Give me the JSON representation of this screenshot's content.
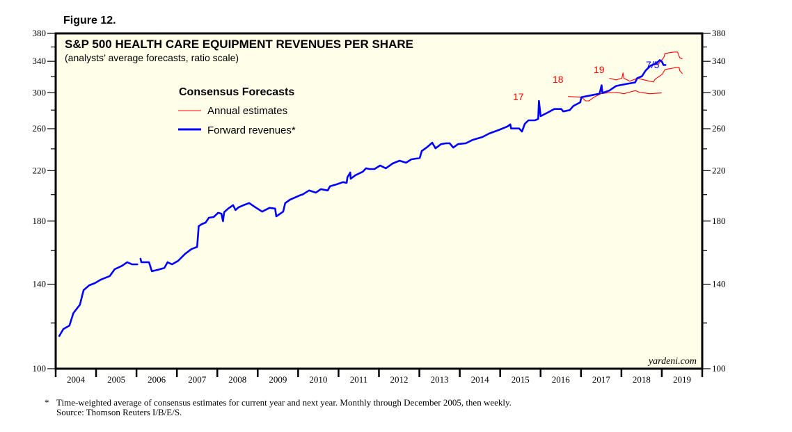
{
  "figure_label": "Figure 12.",
  "footnote": {
    "marker": "*",
    "line1": "Time-weighted average of consensus estimates for current year and next year. Monthly through December 2005, then weekly.",
    "line2": "Source: Thomson Reuters I/B/E/S."
  },
  "colors": {
    "background": "#fffee8",
    "forward": "#0000ff",
    "annual": "#ff0000",
    "frame": "#000000"
  },
  "chart_data": {
    "type": "line",
    "title": "S&P 500 HEALTH CARE EQUIPMENT REVENUES PER SHARE",
    "subtitle": "(analysts’ average forecasts, ratio scale)",
    "credit": "yardeni.com",
    "yscale": "log",
    "ylim": [
      100,
      380
    ],
    "xlim": [
      2004,
      2020
    ],
    "y_ticks": [
      100,
      140,
      180,
      220,
      260,
      300,
      340,
      380
    ],
    "y_minor_ticks": [
      120,
      160,
      200,
      240,
      280,
      320,
      360
    ],
    "x_ticks": [
      "2004",
      "2005",
      "2006",
      "2007",
      "2008",
      "2009",
      "2010",
      "2011",
      "2012",
      "2013",
      "2014",
      "2015",
      "2016",
      "2017",
      "2018",
      "2019"
    ],
    "legend": {
      "title": "Consensus Forecasts",
      "placement": "upper-left",
      "entries": [
        {
          "label": "Annual estimates",
          "series": "annual"
        },
        {
          "label": "Forward revenues*",
          "series": "forward"
        }
      ]
    },
    "annotations": [
      {
        "text": "17",
        "series": "annual_2017"
      },
      {
        "text": "18",
        "series": "annual_2018"
      },
      {
        "text": "19",
        "series": "annual_2019"
      },
      {
        "text": "7/5",
        "series": "forward"
      }
    ],
    "series": [
      {
        "name": "Forward revenues*",
        "key": "forward",
        "segments": [
          [
            [
              2004.09,
              113.9
            ],
            [
              2004.19,
              117.1
            ],
            [
              2004.34,
              118.7
            ],
            [
              2004.44,
              124.8
            ],
            [
              2004.6,
              129.0
            ],
            [
              2004.69,
              136.7
            ],
            [
              2004.83,
              139.4
            ],
            [
              2004.97,
              140.6
            ],
            [
              2005.12,
              142.6
            ],
            [
              2005.34,
              144.6
            ],
            [
              2005.46,
              148.6
            ],
            [
              2005.64,
              150.6
            ],
            [
              2005.77,
              152.8
            ],
            [
              2005.89,
              151.5
            ],
            [
              2006.0,
              151.5
            ],
            [
              2006.02,
              151.5
            ]
          ],
          [
            [
              2006.1,
              154.9
            ],
            [
              2006.12,
              152.8
            ],
            [
              2006.31,
              152.8
            ],
            [
              2006.38,
              147.4
            ],
            [
              2006.52,
              148.2
            ],
            [
              2006.69,
              149.4
            ],
            [
              2006.77,
              152.8
            ],
            [
              2006.88,
              151.5
            ],
            [
              2007.03,
              153.6
            ],
            [
              2007.2,
              157.9
            ],
            [
              2007.36,
              161.0
            ],
            [
              2007.5,
              162.4
            ],
            [
              2007.52,
              169.2
            ],
            [
              2007.54,
              176.4
            ],
            [
              2007.62,
              177.9
            ],
            [
              2007.71,
              178.9
            ],
            [
              2007.79,
              182.4
            ],
            [
              2007.91,
              182.9
            ],
            [
              2008.02,
              186.0
            ],
            [
              2008.1,
              185.4
            ],
            [
              2008.14,
              179.9
            ],
            [
              2008.17,
              186.5
            ],
            [
              2008.27,
              189.2
            ],
            [
              2008.39,
              191.8
            ],
            [
              2008.45,
              188.1
            ],
            [
              2008.53,
              190.2
            ],
            [
              2008.65,
              191.8
            ],
            [
              2008.79,
              193.4
            ],
            [
              2008.94,
              190.2
            ],
            [
              2009.11,
              186.9
            ],
            [
              2009.29,
              189.7
            ],
            [
              2009.43,
              189.2
            ],
            [
              2009.46,
              183.4
            ],
            [
              2009.63,
              186.9
            ],
            [
              2009.68,
              193.4
            ],
            [
              2009.8,
              196.0
            ],
            [
              2010.08,
              199.9
            ],
            [
              2010.1,
              199.9
            ],
            [
              2010.27,
              203.3
            ],
            [
              2010.44,
              201.6
            ],
            [
              2010.56,
              204.4
            ],
            [
              2010.73,
              203.3
            ],
            [
              2010.79,
              206.7
            ],
            [
              2010.96,
              208.4
            ],
            [
              2011.11,
              210.2
            ],
            [
              2011.2,
              209.6
            ],
            [
              2011.22,
              214.3
            ],
            [
              2011.29,
              218.4
            ],
            [
              2011.3,
              213.0
            ],
            [
              2011.42,
              216.1
            ],
            [
              2011.6,
              219.1
            ],
            [
              2011.68,
              222.1
            ],
            [
              2011.77,
              221.4
            ],
            [
              2011.89,
              221.4
            ],
            [
              2012.03,
              224.6
            ],
            [
              2012.17,
              222.1
            ],
            [
              2012.34,
              226.4
            ],
            [
              2012.51,
              228.9
            ],
            [
              2012.67,
              227.1
            ],
            [
              2012.8,
              230.1
            ],
            [
              2013.01,
              231.4
            ],
            [
              2013.06,
              237.9
            ],
            [
              2013.18,
              241.2
            ],
            [
              2013.32,
              245.9
            ],
            [
              2013.4,
              240.5
            ],
            [
              2013.54,
              244.6
            ],
            [
              2013.66,
              245.3
            ],
            [
              2013.75,
              245.3
            ]
          ],
          [
            [
              2013.75,
              245.3
            ],
            [
              2013.84,
              241.2
            ],
            [
              2013.96,
              244.6
            ],
            [
              2014.15,
              245.3
            ],
            [
              2014.32,
              248.7
            ],
            [
              2014.56,
              251.5
            ],
            [
              2014.73,
              255.1
            ],
            [
              2014.96,
              258.6
            ],
            [
              2015.18,
              262.3
            ],
            [
              2015.25,
              264.5
            ],
            [
              2015.27,
              260.2
            ],
            [
              2015.47,
              260.2
            ],
            [
              2015.54,
              257.1
            ],
            [
              2015.61,
              265.1
            ],
            [
              2015.7,
              268.8
            ],
            [
              2015.86,
              268.8
            ],
            [
              2015.94,
              270.4
            ],
            [
              2015.96,
              290.5
            ],
            [
              2016.0,
              273.3
            ],
            [
              2016.17,
              277.1
            ],
            [
              2016.34,
              281.2
            ],
            [
              2016.51,
              281.2
            ],
            [
              2016.56,
              278.5
            ],
            [
              2016.72,
              280.0
            ],
            [
              2016.81,
              284.6
            ],
            [
              2016.98,
              288.8
            ],
            [
              2017.01,
              294.7
            ],
            [
              2017.19,
              296.4
            ],
            [
              2017.46,
              298.9
            ],
            [
              2017.51,
              309.1
            ],
            [
              2017.53,
              299.8
            ],
            [
              2017.7,
              302.6
            ],
            [
              2017.87,
              308.2
            ],
            [
              2018.04,
              309.9
            ],
            [
              2018.13,
              310.8
            ],
            [
              2018.34,
              312.6
            ],
            [
              2018.39,
              317.8
            ],
            [
              2018.51,
              320.5
            ],
            [
              2018.6,
              327.8
            ],
            [
              2018.72,
              334.2
            ],
            [
              2018.86,
              337.0
            ],
            [
              2018.95,
              341.7
            ],
            [
              2019.0,
              339.9
            ],
            [
              2019.04,
              335.1
            ],
            [
              2019.09,
              335.1
            ]
          ]
        ]
      },
      {
        "name": "Annual estimates 2017",
        "key": "annual_2017",
        "values": [
          [
            2016.68,
            295.6
          ],
          [
            2017.02,
            294.7
          ],
          [
            2017.11,
            290.5
          ],
          [
            2017.2,
            290.5
          ],
          [
            2017.32,
            294.7
          ],
          [
            2017.49,
            298.9
          ],
          [
            2017.72,
            300.3
          ],
          [
            2017.96,
            299.8
          ],
          [
            2018.06,
            298.9
          ],
          [
            2018.23,
            301.1
          ],
          [
            2018.35,
            302.6
          ],
          [
            2018.46,
            300.3
          ],
          [
            2018.56,
            299.8
          ],
          [
            2018.7,
            298.9
          ],
          [
            2019.0,
            299.8
          ]
        ]
      },
      {
        "name": "Annual estimates 2018",
        "key": "annual_2018",
        "values": [
          [
            2017.7,
            317.8
          ],
          [
            2017.87,
            315.8
          ],
          [
            2018.01,
            317.8
          ],
          [
            2018.04,
            324.7
          ],
          [
            2018.06,
            317.8
          ],
          [
            2018.21,
            314.1
          ],
          [
            2018.39,
            317.8
          ],
          [
            2018.56,
            315.8
          ],
          [
            2018.79,
            313.1
          ],
          [
            2018.84,
            316.9
          ],
          [
            2019.01,
            322.9
          ],
          [
            2019.08,
            329.1
          ],
          [
            2019.18,
            330.0
          ],
          [
            2019.27,
            330.9
          ],
          [
            2019.36,
            331.9
          ],
          [
            2019.43,
            331.9
          ],
          [
            2019.44,
            327.8
          ],
          [
            2019.51,
            323.8
          ]
        ]
      },
      {
        "name": "Annual estimates 2019",
        "key": "annual_2019",
        "values": [
          [
            2018.79,
            335.1
          ],
          [
            2018.91,
            336.0
          ],
          [
            2019.05,
            345.2
          ],
          [
            2019.08,
            350.9
          ],
          [
            2019.3,
            352.8
          ],
          [
            2019.39,
            352.8
          ],
          [
            2019.44,
            345.2
          ],
          [
            2019.51,
            343.3
          ]
        ]
      }
    ]
  }
}
